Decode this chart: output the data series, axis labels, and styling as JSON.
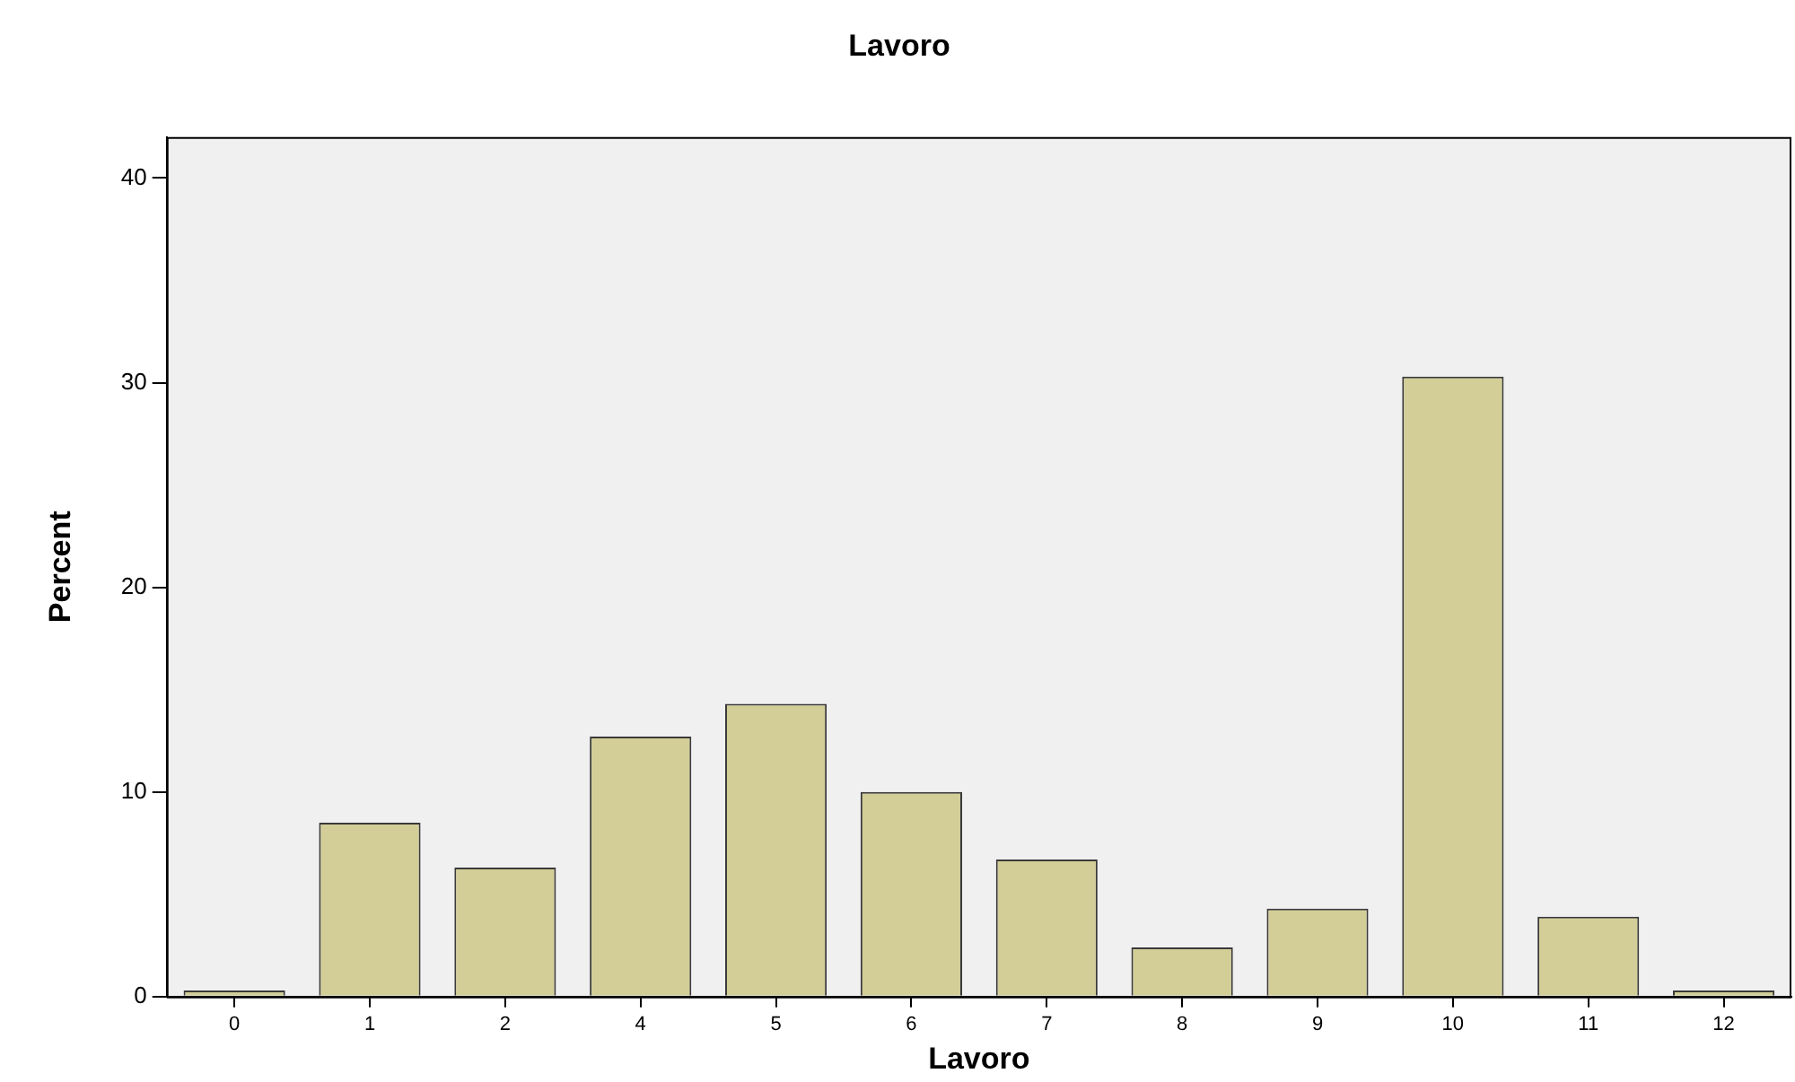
{
  "chart_data": {
    "type": "bar",
    "title": "Lavoro",
    "xlabel": "Lavoro",
    "ylabel": "Percent",
    "categories": [
      "0",
      "1",
      "2",
      "4",
      "5",
      "6",
      "7",
      "8",
      "9",
      "10",
      "11",
      "12"
    ],
    "values": [
      0.3,
      8.5,
      6.3,
      12.7,
      14.3,
      10.0,
      6.7,
      2.4,
      4.3,
      30.3,
      3.9,
      0.3
    ],
    "color": "#d3ce97",
    "ylim": [
      0,
      42
    ],
    "yticks": [
      0,
      10,
      20,
      30,
      40
    ],
    "grid": false,
    "legend": false
  }
}
